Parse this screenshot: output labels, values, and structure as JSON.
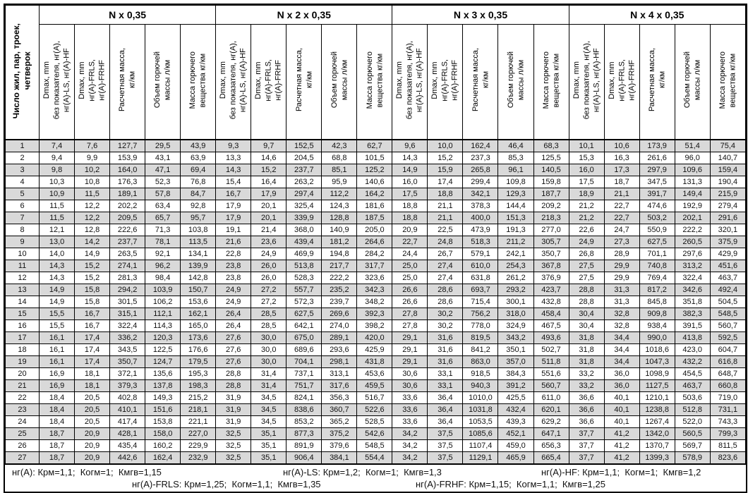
{
  "table": {
    "row_header": "Число жил, пар, троек,\nчетверок",
    "groups": [
      {
        "title": "N x 0,35"
      },
      {
        "title": "N x 2 x 0,35"
      },
      {
        "title": "N x 3 x 0,35"
      },
      {
        "title": "N x 4 x 0,35"
      }
    ],
    "sub_headers": [
      "Dmax, mm\nбез показателя, нг(А),\nнг(А)-LS, нг(А)-HF",
      "Dmax, mm\nнг(А)-FRLS,\nнг(А)-FRHF",
      "Расчетная масса,\nкг/км",
      "Объем горючей\nмассы л/км",
      "Масса горючего\nвещества кг/км"
    ],
    "rows": [
      {
        "n": "1",
        "values": [
          "7,4",
          "7,6",
          "127,7",
          "29,5",
          "43,9",
          "9,3",
          "9,7",
          "152,5",
          "42,3",
          "62,7",
          "9,6",
          "10,0",
          "162,4",
          "46,4",
          "68,3",
          "10,1",
          "10,6",
          "173,9",
          "51,4",
          "75,4"
        ]
      },
      {
        "n": "2",
        "values": [
          "9,4",
          "9,9",
          "153,9",
          "43,1",
          "63,9",
          "13,3",
          "14,6",
          "204,5",
          "68,8",
          "101,5",
          "14,3",
          "15,2",
          "237,3",
          "85,3",
          "125,5",
          "15,3",
          "16,3",
          "261,6",
          "96,0",
          "140,7"
        ]
      },
      {
        "n": "3",
        "values": [
          "9,8",
          "10,2",
          "164,0",
          "47,1",
          "69,4",
          "14,3",
          "15,2",
          "237,7",
          "85,1",
          "125,2",
          "14,9",
          "15,9",
          "265,8",
          "96,1",
          "140,5",
          "16,0",
          "17,3",
          "297,9",
          "109,6",
          "159,4"
        ]
      },
      {
        "n": "4",
        "values": [
          "10,3",
          "10,8",
          "176,3",
          "52,3",
          "76,8",
          "15,4",
          "16,4",
          "263,2",
          "95,9",
          "140,6",
          "16,0",
          "17,4",
          "299,4",
          "109,8",
          "159,8",
          "17,5",
          "18,7",
          "347,5",
          "131,3",
          "190,4"
        ]
      },
      {
        "n": "5",
        "values": [
          "10,9",
          "11,5",
          "189,1",
          "57,8",
          "84,7",
          "16,7",
          "17,9",
          "297,4",
          "112,2",
          "164,2",
          "17,5",
          "18,8",
          "342,1",
          "129,3",
          "187,7",
          "18,9",
          "21,1",
          "391,7",
          "149,4",
          "215,9"
        ]
      },
      {
        "n": "6",
        "values": [
          "11,5",
          "12,2",
          "202,2",
          "63,4",
          "92,8",
          "17,9",
          "20,1",
          "325,4",
          "124,3",
          "181,6",
          "18,8",
          "21,1",
          "378,3",
          "144,4",
          "209,2",
          "21,2",
          "22,7",
          "474,6",
          "192,9",
          "279,4"
        ]
      },
      {
        "n": "7",
        "values": [
          "11,5",
          "12,2",
          "209,5",
          "65,7",
          "95,7",
          "17,9",
          "20,1",
          "339,9",
          "128,8",
          "187,5",
          "18,8",
          "21,1",
          "400,0",
          "151,3",
          "218,3",
          "21,2",
          "22,7",
          "503,2",
          "202,1",
          "291,6"
        ]
      },
      {
        "n": "8",
        "values": [
          "12,1",
          "12,8",
          "222,6",
          "71,3",
          "103,8",
          "19,1",
          "21,4",
          "368,0",
          "140,9",
          "205,0",
          "20,9",
          "22,5",
          "473,9",
          "191,3",
          "277,0",
          "22,6",
          "24,7",
          "550,9",
          "222,2",
          "320,1"
        ]
      },
      {
        "n": "9",
        "values": [
          "13,0",
          "14,2",
          "237,7",
          "78,1",
          "113,5",
          "21,6",
          "23,6",
          "439,4",
          "181,2",
          "264,6",
          "22,7",
          "24,8",
          "518,3",
          "211,2",
          "305,7",
          "24,9",
          "27,3",
          "627,5",
          "260,5",
          "375,9"
        ]
      },
      {
        "n": "10",
        "values": [
          "14,0",
          "14,9",
          "263,5",
          "92,1",
          "134,1",
          "22,8",
          "24,9",
          "469,9",
          "194,8",
          "284,2",
          "24,4",
          "26,7",
          "579,1",
          "242,1",
          "350,7",
          "26,8",
          "28,9",
          "701,1",
          "297,6",
          "429,9"
        ]
      },
      {
        "n": "11",
        "values": [
          "14,3",
          "15,2",
          "274,1",
          "96,2",
          "139,9",
          "23,8",
          "26,0",
          "513,8",
          "217,7",
          "317,7",
          "25,0",
          "27,4",
          "610,0",
          "254,3",
          "367,8",
          "27,5",
          "29,9",
          "740,8",
          "313,2",
          "451,6"
        ]
      },
      {
        "n": "12",
        "values": [
          "14,3",
          "15,2",
          "281,3",
          "98,4",
          "142,8",
          "23,8",
          "26,0",
          "528,3",
          "222,2",
          "323,6",
          "25,0",
          "27,4",
          "631,8",
          "261,2",
          "376,9",
          "27,5",
          "29,9",
          "769,4",
          "322,4",
          "463,7"
        ]
      },
      {
        "n": "13",
        "values": [
          "14,9",
          "15,8",
          "294,2",
          "103,9",
          "150,7",
          "24,9",
          "27,2",
          "557,7",
          "235,2",
          "342,3",
          "26,6",
          "28,6",
          "693,7",
          "293,2",
          "423,7",
          "28,8",
          "31,3",
          "817,2",
          "342,6",
          "492,4"
        ]
      },
      {
        "n": "14",
        "values": [
          "14,9",
          "15,8",
          "301,5",
          "106,2",
          "153,6",
          "24,9",
          "27,2",
          "572,3",
          "239,7",
          "348,2",
          "26,6",
          "28,6",
          "715,4",
          "300,1",
          "432,8",
          "28,8",
          "31,3",
          "845,8",
          "351,8",
          "504,5"
        ]
      },
      {
        "n": "15",
        "values": [
          "15,5",
          "16,7",
          "315,1",
          "112,1",
          "162,1",
          "26,4",
          "28,5",
          "627,5",
          "269,6",
          "392,3",
          "27,8",
          "30,2",
          "756,2",
          "318,0",
          "458,4",
          "30,4",
          "32,8",
          "909,8",
          "382,3",
          "548,5"
        ]
      },
      {
        "n": "16",
        "values": [
          "15,5",
          "16,7",
          "322,4",
          "114,3",
          "165,0",
          "26,4",
          "28,5",
          "642,1",
          "274,0",
          "398,2",
          "27,8",
          "30,2",
          "778,0",
          "324,9",
          "467,5",
          "30,4",
          "32,8",
          "938,4",
          "391,5",
          "560,7"
        ]
      },
      {
        "n": "17",
        "values": [
          "16,1",
          "17,4",
          "336,2",
          "120,3",
          "173,6",
          "27,6",
          "30,0",
          "675,0",
          "289,1",
          "420,0",
          "29,1",
          "31,6",
          "819,5",
          "343,2",
          "493,6",
          "31,8",
          "34,4",
          "990,0",
          "413,8",
          "592,5"
        ]
      },
      {
        "n": "18",
        "values": [
          "16,1",
          "17,4",
          "343,5",
          "122,5",
          "176,6",
          "27,6",
          "30,0",
          "689,6",
          "293,6",
          "425,9",
          "29,1",
          "31,6",
          "841,2",
          "350,1",
          "502,7",
          "31,8",
          "34,4",
          "1018,6",
          "423,0",
          "604,7"
        ]
      },
      {
        "n": "19",
        "values": [
          "16,1",
          "17,4",
          "350,7",
          "124,7",
          "179,5",
          "27,6",
          "30,0",
          "704,1",
          "298,1",
          "431,8",
          "29,1",
          "31,6",
          "863,0",
          "357,0",
          "511,8",
          "31,8",
          "34,4",
          "1047,3",
          "432,2",
          "616,8"
        ]
      },
      {
        "n": "20",
        "values": [
          "16,9",
          "18,1",
          "372,1",
          "135,6",
          "195,3",
          "28,8",
          "31,4",
          "737,1",
          "313,1",
          "453,6",
          "30,6",
          "33,1",
          "918,5",
          "384,3",
          "551,6",
          "33,2",
          "36,0",
          "1098,9",
          "454,5",
          "648,7"
        ]
      },
      {
        "n": "21",
        "values": [
          "16,9",
          "18,1",
          "379,3",
          "137,8",
          "198,3",
          "28,8",
          "31,4",
          "751,7",
          "317,6",
          "459,5",
          "30,6",
          "33,1",
          "940,3",
          "391,2",
          "560,7",
          "33,2",
          "36,0",
          "1127,5",
          "463,7",
          "660,8"
        ]
      },
      {
        "n": "22",
        "values": [
          "18,4",
          "20,5",
          "402,8",
          "149,3",
          "215,2",
          "31,9",
          "34,5",
          "824,1",
          "356,3",
          "516,7",
          "33,6",
          "36,4",
          "1010,0",
          "425,5",
          "611,0",
          "36,6",
          "40,1",
          "1210,1",
          "503,6",
          "719,0"
        ]
      },
      {
        "n": "23",
        "values": [
          "18,4",
          "20,5",
          "410,1",
          "151,6",
          "218,1",
          "31,9",
          "34,5",
          "838,6",
          "360,7",
          "522,6",
          "33,6",
          "36,4",
          "1031,8",
          "432,4",
          "620,1",
          "36,6",
          "40,1",
          "1238,8",
          "512,8",
          "731,1"
        ]
      },
      {
        "n": "24",
        "values": [
          "18,4",
          "20,5",
          "417,4",
          "153,8",
          "221,1",
          "31,9",
          "34,5",
          "853,2",
          "365,2",
          "528,5",
          "33,6",
          "36,4",
          "1053,5",
          "439,3",
          "629,2",
          "36,6",
          "40,1",
          "1267,4",
          "522,0",
          "743,3"
        ]
      },
      {
        "n": "25",
        "values": [
          "18,7",
          "20,9",
          "428,1",
          "158,0",
          "227,0",
          "32,5",
          "35,1",
          "877,3",
          "375,2",
          "542,6",
          "34,2",
          "37,5",
          "1085,6",
          "452,1",
          "647,1",
          "37,7",
          "41,2",
          "1342,0",
          "560,5",
          "799,3"
        ]
      },
      {
        "n": "26",
        "values": [
          "18,7",
          "20,9",
          "435,4",
          "160,2",
          "229,9",
          "32,5",
          "35,1",
          "891,9",
          "379,6",
          "548,5",
          "34,2",
          "37,5",
          "1107,4",
          "459,0",
          "656,3",
          "37,7",
          "41,2",
          "1370,7",
          "569,7",
          "811,5"
        ]
      },
      {
        "n": "27",
        "values": [
          "18,7",
          "20,9",
          "442,6",
          "162,4",
          "232,9",
          "32,5",
          "35,1",
          "906,4",
          "384,1",
          "554,4",
          "34,2",
          "37,5",
          "1129,1",
          "465,9",
          "665,4",
          "37,7",
          "41,2",
          "1399,3",
          "578,9",
          "823,6"
        ]
      }
    ]
  },
  "footer": {
    "line1": [
      "нг(А): Крм=1,1;  Когм=1;  Кмгв=1,15",
      "нг(А)-LS: Крм=1,2;  Когм=1;  Кмгв=1,3",
      "нг(А)-HF: Крм=1,1;  Когм=1;  Кмгв=1,2"
    ],
    "line2": [
      "нг(А)-FRLS: Крм=1,25;  Когм=1,1;  Кмгв=1,35",
      "нг(А)-FRHF: Крм=1,15;  Когм=1,1;  Кмгв=1,25"
    ]
  },
  "colors": {
    "stripe": "#d9d9d9",
    "border": "#000000",
    "background": "#ffffff"
  }
}
